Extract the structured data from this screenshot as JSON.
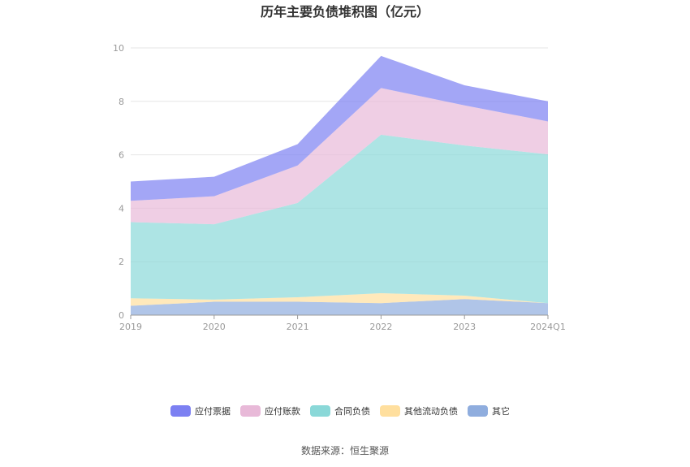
{
  "chart_data": {
    "type": "area",
    "stacked": true,
    "title": "历年主要负债堆积图（亿元）",
    "source": "数据来源：恒生聚源",
    "categories": [
      "2019",
      "2020",
      "2021",
      "2022",
      "2023",
      "2024Q1"
    ],
    "ylim": [
      0,
      10
    ],
    "yticks": [
      0,
      2,
      4,
      6,
      8,
      10
    ],
    "grid": true,
    "legend_position": "bottom",
    "series": [
      {
        "name": "其它",
        "color": "#8fadde",
        "values": [
          0.35,
          0.5,
          0.5,
          0.45,
          0.6,
          0.45
        ]
      },
      {
        "name": "其他流动负债",
        "color": "#ffdf9e",
        "values": [
          0.28,
          0.08,
          0.17,
          0.37,
          0.13,
          0.0
        ]
      },
      {
        "name": "合同负债",
        "color": "#8ad8d8",
        "values": [
          2.85,
          2.82,
          3.53,
          5.93,
          5.62,
          5.57
        ]
      },
      {
        "name": "应付账款",
        "color": "#e8b9d8",
        "values": [
          0.8,
          1.05,
          1.4,
          1.75,
          1.5,
          1.23
        ]
      },
      {
        "name": "应付票据",
        "color": "#7c80f2",
        "values": [
          0.72,
          0.73,
          0.8,
          1.2,
          0.75,
          0.75
        ]
      }
    ]
  }
}
